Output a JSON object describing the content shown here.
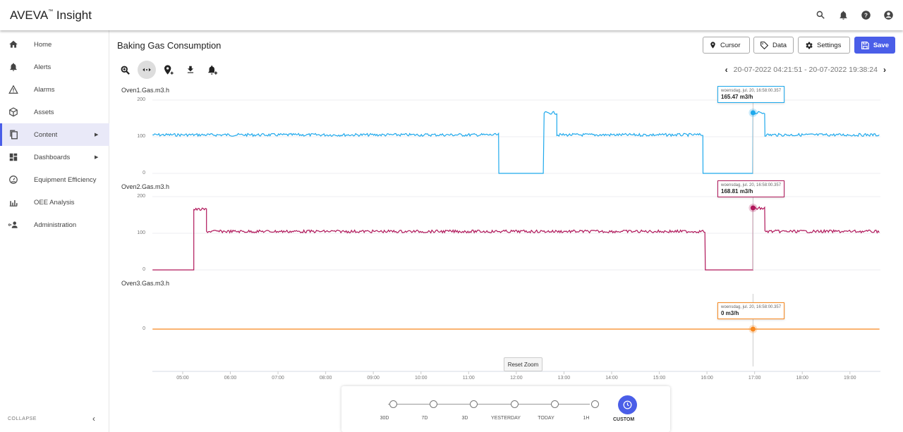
{
  "app": {
    "brand": "AVEVA",
    "brand_tm": "™",
    "brand_suffix": " Insight"
  },
  "top_icons": [
    "search-icon",
    "bell-icon",
    "help-icon",
    "account-icon"
  ],
  "sidebar": {
    "items": [
      {
        "label": "Home",
        "icon": "home-icon"
      },
      {
        "label": "Alerts",
        "icon": "bell-icon"
      },
      {
        "label": "Alarms",
        "icon": "warning-icon"
      },
      {
        "label": "Assets",
        "icon": "cube-icon"
      },
      {
        "label": "Content",
        "icon": "copy-icon",
        "active": true,
        "submenu": "▶"
      },
      {
        "label": "Dashboards",
        "icon": "dashboard-icon",
        "submenu": "▶"
      },
      {
        "label": "Equipment Efficiency",
        "icon": "gauge-icon"
      },
      {
        "label": "OEE Analysis",
        "icon": "bar-chart-icon"
      },
      {
        "label": "Administration",
        "icon": "admin-icon"
      }
    ],
    "collapse_label": "COLLAPSE",
    "collapse_icon": "‹"
  },
  "page": {
    "title": "Baking Gas Consumption",
    "buttons": {
      "cursor": "Cursor",
      "data": "Data",
      "settings": "Settings",
      "save": "Save"
    },
    "time_range": "20-07-2022 04:21:51 - 20-07-2022 19:38:24",
    "prev": "‹",
    "next": "›",
    "reset_zoom": "Reset Zoom"
  },
  "tooltip_time": "woensdag, jul. 20, 16:58:00.357",
  "charts": [
    {
      "name": "Oven1.Gas.m3.h",
      "color": "#1fa9ec",
      "value": "165.47 m3/h",
      "yticks": [
        "200",
        "100",
        "0"
      ]
    },
    {
      "name": "Oven2.Gas.m3.h",
      "color": "#b0175a",
      "value": "168.81 m3/h",
      "yticks": [
        "200",
        "100",
        "0"
      ]
    },
    {
      "name": "Oven3.Gas.m3.h",
      "color": "#f7881f",
      "value": "0 m3/h",
      "yticks": [
        "0"
      ]
    }
  ],
  "x_axis": [
    "05:00",
    "06:00",
    "07:00",
    "08:00",
    "09:00",
    "10:00",
    "11:00",
    "12:00",
    "13:00",
    "14:00",
    "15:00",
    "16:00",
    "17:00",
    "18:00",
    "19:00"
  ],
  "time_presets": [
    "30D",
    "7D",
    "3D",
    "YESTERDAY",
    "TODAY",
    "1H"
  ],
  "time_custom": "CUSTOM",
  "chart_data": {
    "type": "line",
    "x_range": [
      "04:21:51",
      "19:38:24"
    ],
    "cursor_time": "16:58:00.357",
    "series": [
      {
        "name": "Oven1.Gas.m3.h",
        "segments": [
          [
            "04:22",
            "11:38",
            105
          ],
          [
            "11:38",
            "12:35",
            0
          ],
          [
            "12:35",
            "12:51",
            165
          ],
          [
            "12:51",
            "15:55",
            105
          ],
          [
            "15:55",
            "16:58",
            0
          ],
          [
            "16:58",
            "17:13",
            165
          ],
          [
            "17:13",
            "19:38",
            105
          ]
        ],
        "cursor_value": 165.47
      },
      {
        "name": "Oven2.Gas.m3.h",
        "segments": [
          [
            "04:22",
            "05:14",
            0
          ],
          [
            "05:14",
            "05:30",
            165
          ],
          [
            "05:30",
            "15:58",
            105
          ],
          [
            "15:58",
            "16:58",
            0
          ],
          [
            "16:58",
            "17:13",
            168
          ],
          [
            "17:13",
            "19:38",
            105
          ]
        ],
        "cursor_value": 168.81
      },
      {
        "name": "Oven3.Gas.m3.h",
        "segments": [
          [
            "04:22",
            "19:38",
            0
          ]
        ],
        "cursor_value": 0
      }
    ],
    "ylim": [
      0,
      200
    ]
  }
}
